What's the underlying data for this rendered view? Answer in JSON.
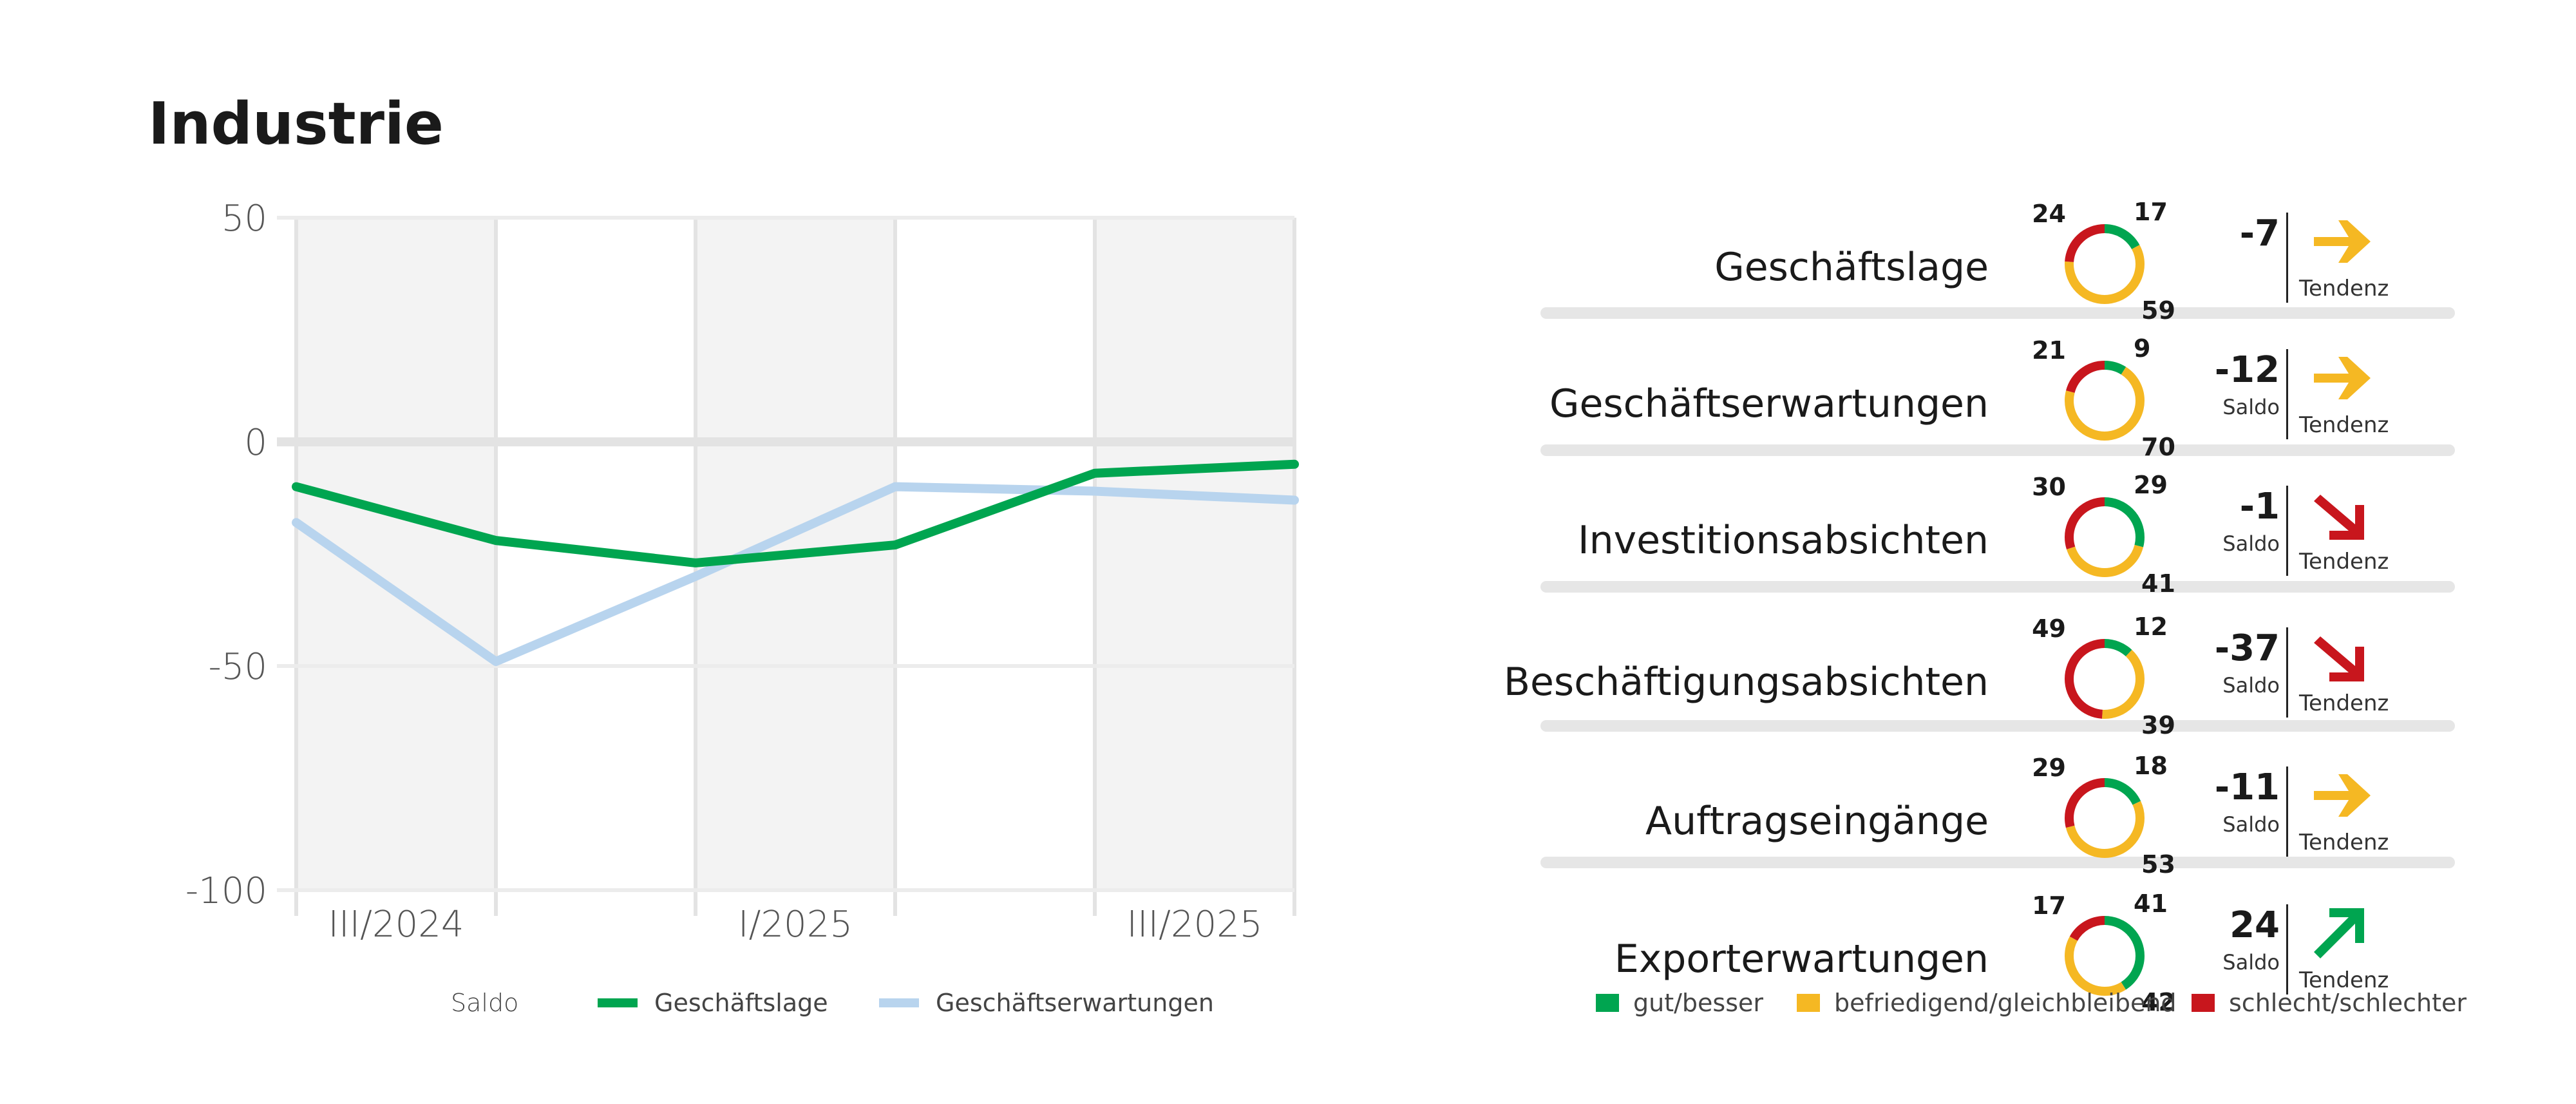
{
  "title": "Industrie",
  "chart_data": [
    {
      "type": "line",
      "title": "",
      "xlabel": "",
      "ylabel": "",
      "x_labels": [
        "III/2024",
        "I/2025",
        "III/2025"
      ],
      "yticks": [
        "50",
        "0",
        "-50",
        "-100"
      ],
      "ylim": [
        -100,
        50
      ],
      "grid": true,
      "legend_title": "Saldo",
      "legend_position": "bottom",
      "series": [
        {
          "name": "Geschäftslage",
          "color": "#00a550",
          "values": [
            -10,
            -22,
            -27,
            -23,
            -7,
            -5
          ]
        },
        {
          "name": "Geschäftserwartungen",
          "color": "#b8d4ee",
          "values": [
            -18,
            -49,
            -30,
            -10,
            -11,
            -13
          ]
        }
      ]
    },
    {
      "type": "pie",
      "rows": [
        {
          "label": "Geschäftslage",
          "good": 17,
          "neutral": 59,
          "bad": 24,
          "saldo": "-7",
          "saldo_label": "",
          "tendenz": "Tendenz",
          "trend": "flat"
        },
        {
          "label": "Geschäftserwartungen",
          "good": 9,
          "neutral": 70,
          "bad": 21,
          "saldo": "-12",
          "saldo_label": "Saldo",
          "tendenz": "Tendenz",
          "trend": "flat"
        },
        {
          "label": "Investitionsabsichten",
          "good": 29,
          "neutral": 41,
          "bad": 30,
          "saldo": "-1",
          "saldo_label": "Saldo",
          "tendenz": "Tendenz",
          "trend": "down"
        },
        {
          "label": "Beschäftigungsabsichten",
          "good": 12,
          "neutral": 39,
          "bad": 49,
          "saldo": "-37",
          "saldo_label": "Saldo",
          "tendenz": "Tendenz",
          "trend": "down"
        },
        {
          "label": "Auftragseingänge",
          "good": 18,
          "neutral": 53,
          "bad": 29,
          "saldo": "-11",
          "saldo_label": "Saldo",
          "tendenz": "Tendenz",
          "trend": "flat"
        },
        {
          "label": "Exporterwartungen",
          "good": 41,
          "neutral": 42,
          "bad": 17,
          "saldo": "24",
          "saldo_label": "Saldo",
          "tendenz": "Tendenz",
          "trend": "up"
        }
      ],
      "legend": [
        {
          "label": "gut/besser",
          "color": "#00a550"
        },
        {
          "label": "befriedigend/gleichbleibend",
          "color": "#f5b823"
        },
        {
          "label": "schlecht/schlechter",
          "color": "#c8161d"
        }
      ]
    }
  ]
}
